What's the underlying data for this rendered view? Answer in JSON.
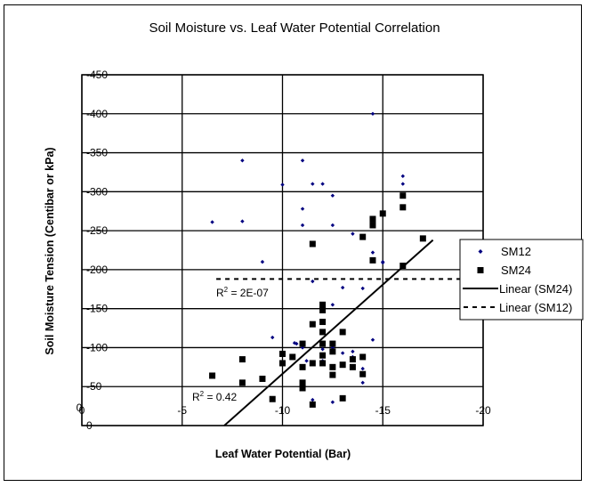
{
  "chart_data": {
    "type": "scatter",
    "title": "Soil Moisture vs. Leaf Water Potential Correlation",
    "xlabel": "Leaf Water Potential  (Bar)",
    "ylabel": "Soil Moisture Tension (Centibar or kPa)",
    "xlim": [
      0,
      -20
    ],
    "ylim": [
      0,
      -450
    ],
    "x_ticks": [
      0,
      -5,
      -10,
      -15,
      -20
    ],
    "x_tick_labels": [
      "0",
      "-5",
      "-10",
      "-15",
      "-20"
    ],
    "y_ticks": [
      0,
      -50,
      -100,
      -150,
      -200,
      -250,
      -300,
      -350,
      -400,
      -450
    ],
    "y_tick_labels": [
      "0",
      "-50",
      "-100",
      "-150",
      "-200",
      "-250",
      "-300",
      "-350",
      "-400",
      "-450"
    ],
    "y_extra_label": "0",
    "grid": true,
    "legend_position": "right",
    "legend": [
      "SM12",
      "SM24",
      "Linear (SM24)",
      "Linear (SM12)"
    ],
    "series": [
      {
        "name": "SM12",
        "marker": "diamond",
        "color": "#000080",
        "points": [
          [
            -6.5,
            -261
          ],
          [
            -8,
            -340
          ],
          [
            -8,
            -262
          ],
          [
            -9,
            -210
          ],
          [
            -9.5,
            -113
          ],
          [
            -10,
            -309
          ],
          [
            -11,
            -340
          ],
          [
            -11,
            -278
          ],
          [
            -11,
            -257
          ],
          [
            -11.5,
            -310
          ],
          [
            -12,
            -310
          ],
          [
            -12.5,
            -295
          ],
          [
            -12.5,
            -257
          ],
          [
            -14.5,
            -400
          ],
          [
            -16,
            -320
          ],
          [
            -16,
            -310
          ],
          [
            -11.5,
            -185
          ],
          [
            -10.6,
            -106
          ],
          [
            -10.7,
            -105
          ],
          [
            -13,
            -177
          ],
          [
            -14,
            -176
          ],
          [
            -13.5,
            -246
          ],
          [
            -14.5,
            -222
          ],
          [
            -15,
            -209
          ],
          [
            -15,
            -210
          ],
          [
            -12,
            -155
          ],
          [
            -12.5,
            -155
          ],
          [
            -11.5,
            -130
          ],
          [
            -12,
            -98
          ],
          [
            -12.5,
            -100
          ],
          [
            -13,
            -93
          ],
          [
            -13.5,
            -88
          ],
          [
            -14,
            -73
          ],
          [
            -14.5,
            -110
          ],
          [
            -14,
            -55
          ],
          [
            -11.5,
            -33
          ],
          [
            -12.5,
            -30
          ],
          [
            -11,
            -100
          ],
          [
            -12,
            -83
          ],
          [
            -13.5,
            -95
          ],
          [
            -11.2,
            -83
          ]
        ]
      },
      {
        "name": "SM24",
        "marker": "square",
        "color": "#000000",
        "points": [
          [
            -6.5,
            -64
          ],
          [
            -8,
            -85
          ],
          [
            -8,
            -55
          ],
          [
            -9,
            -60
          ],
          [
            -9.5,
            -34
          ],
          [
            -10,
            -92
          ],
          [
            -10,
            -80
          ],
          [
            -10.5,
            -88
          ],
          [
            -11,
            -105
          ],
          [
            -11,
            -75
          ],
          [
            -11,
            -55
          ],
          [
            -11,
            -48
          ],
          [
            -11.5,
            -233
          ],
          [
            -11.5,
            -130
          ],
          [
            -11.5,
            -80
          ],
          [
            -11.5,
            -27
          ],
          [
            -12,
            -155
          ],
          [
            -12,
            -148
          ],
          [
            -12,
            -133
          ],
          [
            -12,
            -120
          ],
          [
            -12,
            -105
          ],
          [
            -12,
            -90
          ],
          [
            -12,
            -80
          ],
          [
            -12.5,
            -105
          ],
          [
            -12.5,
            -95
          ],
          [
            -12.5,
            -75
          ],
          [
            -12.5,
            -65
          ],
          [
            -13,
            -120
          ],
          [
            -13,
            -78
          ],
          [
            -13,
            -35
          ],
          [
            -13.5,
            -85
          ],
          [
            -13.5,
            -75
          ],
          [
            -14,
            -242
          ],
          [
            -14,
            -88
          ],
          [
            -14,
            -66
          ],
          [
            -14.5,
            -265
          ],
          [
            -14.5,
            -257
          ],
          [
            -14.5,
            -212
          ],
          [
            -15,
            -272
          ],
          [
            -16,
            -295
          ],
          [
            -16,
            -280
          ],
          [
            -16,
            -205
          ],
          [
            -17,
            -240
          ]
        ]
      }
    ],
    "trendlines": [
      {
        "name": "Linear (SM24)",
        "style": "solid",
        "x": [
          -7.1,
          -17.5
        ],
        "y": [
          0,
          -238
        ],
        "r2_label": "R² = 0.42",
        "r2_value": 0.42
      },
      {
        "name": "Linear (SM12)",
        "style": "dashed",
        "x": [
          -6.7,
          -20
        ],
        "y": [
          -188,
          -188
        ],
        "r2_label": "R² = 2E-07",
        "r2_value": 2e-07
      }
    ]
  }
}
